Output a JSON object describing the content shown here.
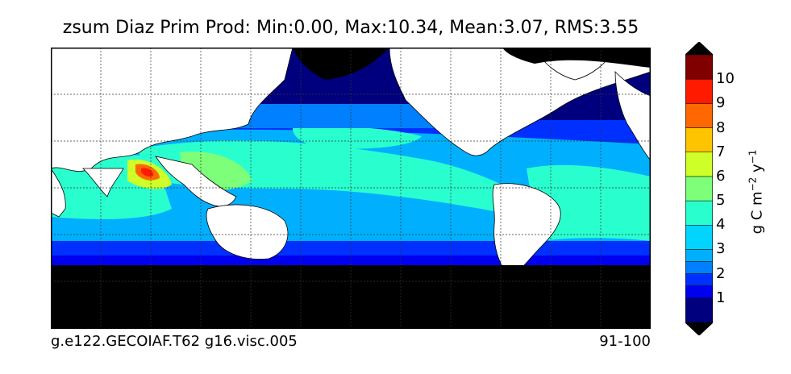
{
  "title": "zsum Diaz Prim Prod: Min:0.00, Max:10.34, Mean:3.07, RMS:3.55",
  "caption_left": "g.e122.GECOIAF.T62 g16.visc.005",
  "caption_right": "91-100",
  "colorbar": {
    "label_base": "g C m",
    "label_exp1": "−2",
    "label_mid": " y",
    "label_exp2": "−1",
    "ticks": [
      "1",
      "2",
      "3",
      "4",
      "5",
      "6",
      "7",
      "8",
      "9",
      "10"
    ],
    "extend": "both",
    "over_color": "#000000",
    "under_color": "#000000",
    "levels": [
      {
        "from": 0.0,
        "to": 1.0,
        "color": "#00007f"
      },
      {
        "from": 1.0,
        "to": 1.5,
        "color": "#0000ee"
      },
      {
        "from": 1.5,
        "to": 2.0,
        "color": "#0030ff"
      },
      {
        "from": 2.0,
        "to": 2.5,
        "color": "#0080ff"
      },
      {
        "from": 2.5,
        "to": 3.0,
        "color": "#00b0ff"
      },
      {
        "from": 3.0,
        "to": 4.0,
        "color": "#00d4ff"
      },
      {
        "from": 4.0,
        "to": 5.0,
        "color": "#29ffce"
      },
      {
        "from": 5.0,
        "to": 6.0,
        "color": "#7dff7a"
      },
      {
        "from": 6.0,
        "to": 7.0,
        "color": "#ceff29"
      },
      {
        "from": 7.0,
        "to": 8.0,
        "color": "#ffc400"
      },
      {
        "from": 8.0,
        "to": 9.0,
        "color": "#ff6800"
      },
      {
        "from": 9.0,
        "to": 10.0,
        "color": "#ff1a00"
      },
      {
        "from": 10.0,
        "to": 11.0,
        "color": "#800000"
      }
    ]
  },
  "map": {
    "land_color": "#ffffff",
    "sea_ice_color": "#000000",
    "gridlines": "dashed"
  }
}
